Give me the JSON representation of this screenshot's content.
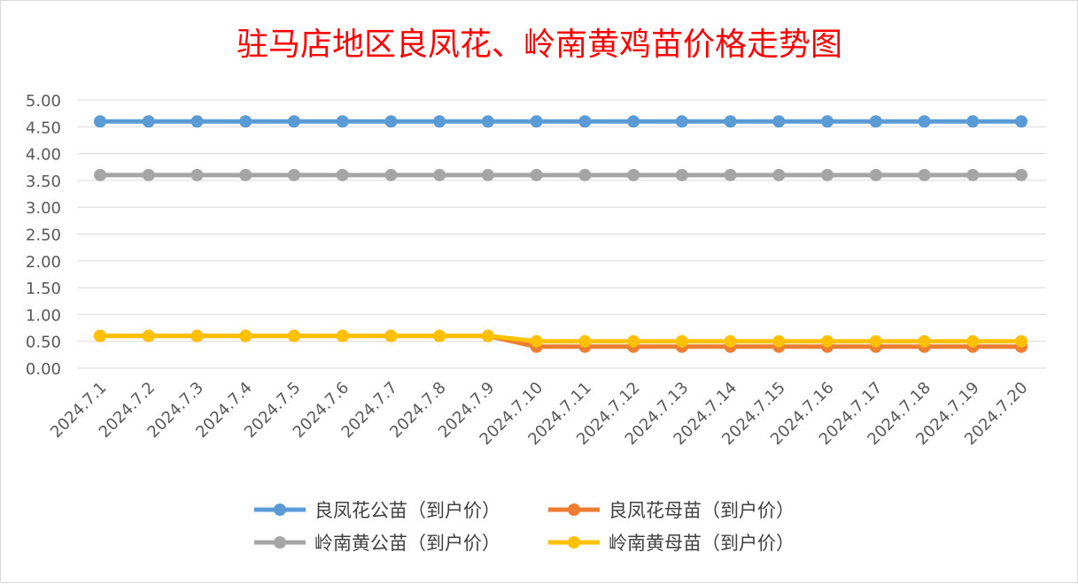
{
  "chart_data": {
    "type": "line",
    "title": "驻马店地区良凤花、岭南黄鸡苗价格走势图",
    "categories": [
      "2024.7.1",
      "2024.7.2",
      "2024.7.3",
      "2024.7.4",
      "2024.7.5",
      "2024.7.6",
      "2024.7.7",
      "2024.7.8",
      "2024.7.9",
      "2024.7.10",
      "2024.7.11",
      "2024.7.12",
      "2024.7.13",
      "2024.7.14",
      "2024.7.15",
      "2024.7.16",
      "2024.7.17",
      "2024.7.18",
      "2024.7.19",
      "2024.7.20"
    ],
    "y_ticks": [
      "5.00",
      "4.50",
      "4.00",
      "3.50",
      "3.00",
      "2.50",
      "2.00",
      "1.50",
      "1.00",
      "0.50",
      "0.00"
    ],
    "ylim": [
      0,
      5
    ],
    "grid": true,
    "legend_position": "bottom",
    "series": [
      {
        "name": "良凤花公苗（到户价）",
        "color": "#5b9bd5",
        "values": [
          4.6,
          4.6,
          4.6,
          4.6,
          4.6,
          4.6,
          4.6,
          4.6,
          4.6,
          4.6,
          4.6,
          4.6,
          4.6,
          4.6,
          4.6,
          4.6,
          4.6,
          4.6,
          4.6,
          4.6
        ]
      },
      {
        "name": "良凤花母苗（到户价）",
        "color": "#ed7d31",
        "values": [
          0.6,
          0.6,
          0.6,
          0.6,
          0.6,
          0.6,
          0.6,
          0.6,
          0.6,
          0.4,
          0.4,
          0.4,
          0.4,
          0.4,
          0.4,
          0.4,
          0.4,
          0.4,
          0.4,
          0.4
        ]
      },
      {
        "name": "岭南黄公苗（到户价）",
        "color": "#a5a5a5",
        "values": [
          3.6,
          3.6,
          3.6,
          3.6,
          3.6,
          3.6,
          3.6,
          3.6,
          3.6,
          3.6,
          3.6,
          3.6,
          3.6,
          3.6,
          3.6,
          3.6,
          3.6,
          3.6,
          3.6,
          3.6
        ]
      },
      {
        "name": "岭南黄母苗（到户价）",
        "color": "#ffc000",
        "values": [
          0.6,
          0.6,
          0.6,
          0.6,
          0.6,
          0.6,
          0.6,
          0.6,
          0.6,
          0.5,
          0.5,
          0.5,
          0.5,
          0.5,
          0.5,
          0.5,
          0.5,
          0.5,
          0.5,
          0.5
        ]
      }
    ]
  }
}
